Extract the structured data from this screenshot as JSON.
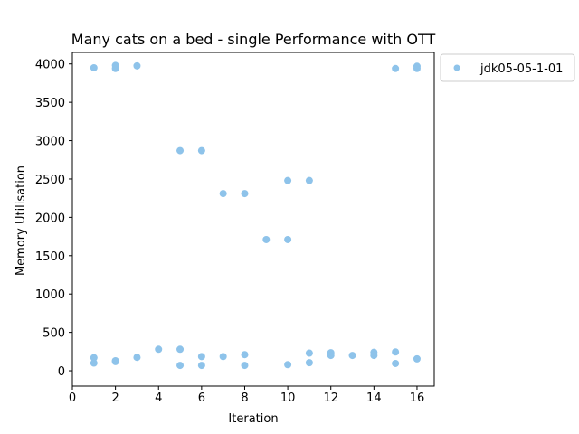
{
  "chart_data": {
    "type": "scatter",
    "title": "Many cats on a bed - single Performance with OTT",
    "xlabel": "Iteration",
    "ylabel": "Memory Utilisation",
    "xlim": [
      0,
      16.8
    ],
    "ylim": [
      -200,
      4150
    ],
    "xticks": [
      0,
      2,
      4,
      6,
      8,
      10,
      12,
      14,
      16
    ],
    "yticks": [
      0,
      500,
      1000,
      1500,
      2000,
      2500,
      3000,
      3500,
      4000
    ],
    "grid": false,
    "legend_position": "outside-top-right",
    "series": [
      {
        "name": "jdk05-05-1-01",
        "color": "#8ec3ea",
        "points": [
          [
            1,
            3950
          ],
          [
            1,
            170
          ],
          [
            1,
            100
          ],
          [
            2,
            3980
          ],
          [
            2,
            3940
          ],
          [
            2,
            130
          ],
          [
            2,
            120
          ],
          [
            3,
            3975
          ],
          [
            3,
            175
          ],
          [
            4,
            280
          ],
          [
            5,
            2870
          ],
          [
            5,
            280
          ],
          [
            5,
            70
          ],
          [
            6,
            2870
          ],
          [
            6,
            185
          ],
          [
            6,
            70
          ],
          [
            7,
            2310
          ],
          [
            7,
            185
          ],
          [
            8,
            2310
          ],
          [
            8,
            210
          ],
          [
            8,
            70
          ],
          [
            9,
            1710
          ],
          [
            10,
            2480
          ],
          [
            10,
            1710
          ],
          [
            10,
            80
          ],
          [
            11,
            2480
          ],
          [
            11,
            230
          ],
          [
            11,
            105
          ],
          [
            12,
            235
          ],
          [
            12,
            200
          ],
          [
            13,
            200
          ],
          [
            14,
            240
          ],
          [
            14,
            200
          ],
          [
            15,
            3940
          ],
          [
            15,
            245
          ],
          [
            15,
            95
          ],
          [
            16,
            3970
          ],
          [
            16,
            3940
          ],
          [
            16,
            155
          ]
        ]
      }
    ]
  }
}
